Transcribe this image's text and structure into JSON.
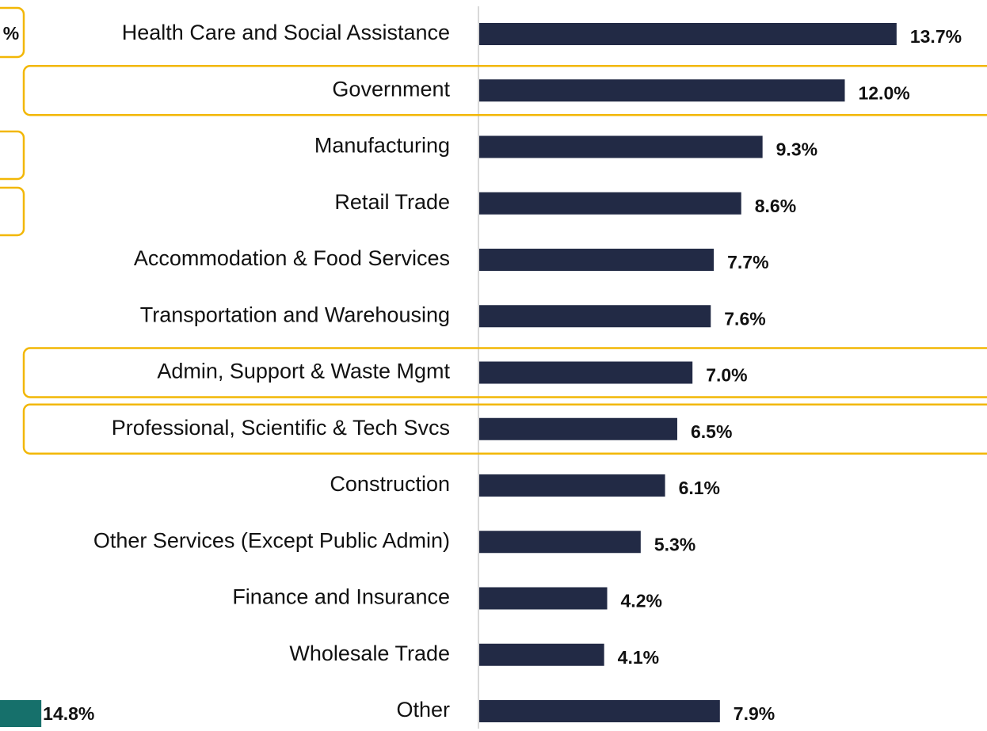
{
  "chart_data": [
    {
      "type": "bar",
      "orientation": "horizontal",
      "categories": [
        "Health Care and Social Assistance",
        "Government",
        "Manufacturing",
        "Retail Trade",
        "Accommodation & Food Services",
        "Transportation and Warehousing",
        "Admin, Support & Waste Mgmt",
        "Professional, Scientific & Tech Svcs",
        "Construction",
        "Other Services (Except Public Admin)",
        "Finance and Insurance",
        "Wholesale Trade",
        "Other"
      ],
      "values": [
        13.7,
        12.0,
        9.3,
        8.6,
        7.7,
        7.6,
        7.0,
        6.5,
        6.1,
        5.3,
        4.2,
        4.1,
        7.9
      ],
      "value_labels": [
        "13.7%",
        "12.0%",
        "9.3%",
        "8.6%",
        "7.7%",
        "7.6%",
        "7.0%",
        "6.5%",
        "6.1%",
        "5.3%",
        "4.2%",
        "4.1%",
        "7.9%"
      ],
      "color": "#222a45",
      "highlight_color": "#f2b705",
      "highlight": [
        1,
        6,
        7
      ],
      "xlim": [
        0,
        16.2
      ]
    },
    {
      "type": "bar",
      "orientation": "horizontal",
      "categories": [
        null
      ],
      "values": [
        14.8
      ],
      "value_labels": [
        "14.8%"
      ],
      "color": "#16706b",
      "xlim": [
        0,
        16.2
      ],
      "annotations": [
        "%"
      ]
    }
  ]
}
